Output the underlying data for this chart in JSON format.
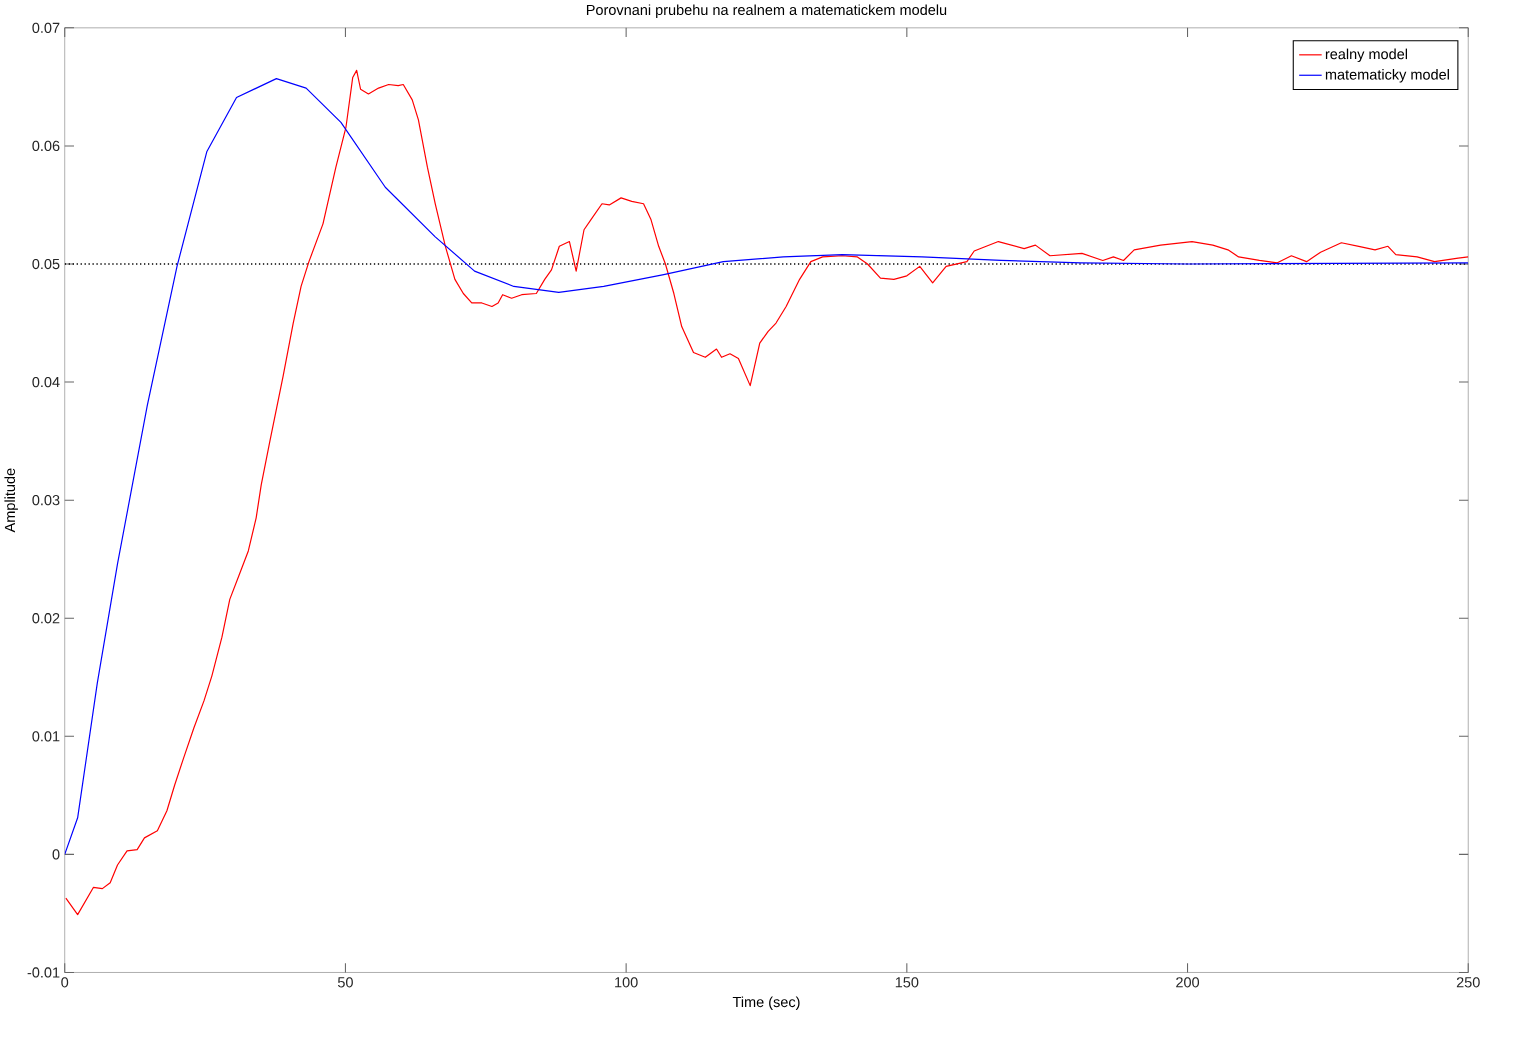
{
  "chart_data": {
    "type": "line",
    "title": "Porovnani prubehu na realnem a matematickem modelu",
    "xlabel": "Time (sec)",
    "ylabel": "Amplitude",
    "xlim": [
      0,
      250
    ],
    "ylim": [
      -0.01,
      0.07
    ],
    "xticks": [
      0,
      50,
      100,
      150,
      200,
      250
    ],
    "yticks": [
      -0.01,
      0,
      0.01,
      0.02,
      0.03,
      0.04,
      0.05,
      0.06,
      0.07
    ],
    "legend": "top right",
    "ref_lines": [
      {
        "axis": "y",
        "value": 0.05,
        "color": "#000000",
        "line_style": "dotted"
      }
    ],
    "series": [
      {
        "name": "realny model",
        "color": "#ff0000",
        "x": [
          0.2,
          2.3,
          5.1,
          6.7,
          8.1,
          9.4,
          11.1,
          12.9,
          14.2,
          16.5,
          18.2,
          19.6,
          21.2,
          23,
          24.8,
          26.2,
          28,
          29.4,
          31.1,
          32.7,
          34.1,
          35,
          36.5,
          38.9,
          40.7,
          42.1,
          43.5,
          46,
          48.3,
          50.1,
          51.3,
          52,
          52.7,
          54.1,
          55.9,
          57.7,
          59.4,
          60.3,
          61.9,
          63,
          64.6,
          66,
          67.8,
          69.5,
          71,
          72.5,
          74.3,
          76.1,
          77.2,
          78,
          79.6,
          81.4,
          84,
          85.5,
          86.7,
          88.1,
          89.9,
          91.1,
          92.5,
          93.8,
          95.7,
          97,
          99.1,
          101,
          103.1,
          104.4,
          105.8,
          107,
          108.5,
          109.9,
          112,
          114.1,
          116.1,
          117,
          118.5,
          120,
          122.1,
          123.8,
          125.3,
          126.7,
          128.5,
          130.9,
          132.9,
          135,
          138.5,
          141.2,
          143,
          145.3,
          147.7,
          150,
          152.3,
          154.6,
          157,
          160.7,
          162,
          166.3,
          170.9,
          172.9,
          175.5,
          181.2,
          184.9,
          186.8,
          188.6,
          190.5,
          195.2,
          200.8,
          204.5,
          207.2,
          209.1,
          212.8,
          216,
          218.5,
          221.2,
          223.7,
          227.4,
          230.5,
          233.4,
          235.7,
          237.1,
          240.9,
          244,
          248.2,
          250
        ],
        "values": [
          -0.0037,
          -0.0051,
          -0.0028,
          -0.0029,
          -0.0024,
          -0.0009,
          0.0003,
          0.0004,
          0.0014,
          0.002,
          0.0037,
          0.0059,
          0.0082,
          0.0107,
          0.013,
          0.0151,
          0.0184,
          0.0216,
          0.0237,
          0.0257,
          0.0285,
          0.0313,
          0.0349,
          0.0405,
          0.045,
          0.0481,
          0.0502,
          0.0534,
          0.0582,
          0.0616,
          0.0658,
          0.0664,
          0.0648,
          0.0644,
          0.0649,
          0.0652,
          0.0651,
          0.0652,
          0.0639,
          0.0622,
          0.0582,
          0.0551,
          0.0515,
          0.0487,
          0.0475,
          0.0467,
          0.0467,
          0.0464,
          0.0467,
          0.0474,
          0.0471,
          0.0474,
          0.0475,
          0.0487,
          0.0495,
          0.0515,
          0.0519,
          0.0494,
          0.0529,
          0.0538,
          0.0551,
          0.055,
          0.0556,
          0.0553,
          0.0551,
          0.0538,
          0.0515,
          0.05,
          0.0475,
          0.0447,
          0.0425,
          0.0421,
          0.0428,
          0.0421,
          0.0424,
          0.042,
          0.0397,
          0.0433,
          0.0443,
          0.045,
          0.0464,
          0.0487,
          0.0502,
          0.0506,
          0.0507,
          0.0506,
          0.05,
          0.0488,
          0.0487,
          0.049,
          0.0498,
          0.0484,
          0.0498,
          0.0502,
          0.0511,
          0.0519,
          0.0513,
          0.0516,
          0.0507,
          0.0509,
          0.0503,
          0.0506,
          0.0503,
          0.0512,
          0.0516,
          0.0519,
          0.0516,
          0.0512,
          0.0506,
          0.0503,
          0.0501,
          0.0507,
          0.0502,
          0.051,
          0.0518,
          0.0515,
          0.0512,
          0.0515,
          0.0508,
          0.0506,
          0.0502,
          0.0505,
          0.0506
        ]
      },
      {
        "name": "matematicky model",
        "color": "#0000ff",
        "x": [
          0,
          2.3,
          5.8,
          9.4,
          14.7,
          20,
          25.3,
          30.6,
          37.7,
          43,
          49.2,
          57.1,
          66,
          73,
          80,
          88,
          96,
          106.7,
          117.3,
          128,
          138.5,
          152.7,
          166.8,
          181,
          200,
          250
        ],
        "values": [
          0,
          0.0031,
          0.0145,
          0.0246,
          0.038,
          0.0498,
          0.0595,
          0.0641,
          0.0657,
          0.0649,
          0.062,
          0.0565,
          0.0523,
          0.0494,
          0.0481,
          0.0476,
          0.0481,
          0.0491,
          0.0502,
          0.0506,
          0.0508,
          0.0506,
          0.0503,
          0.0501,
          0.05,
          0.0501
        ]
      }
    ]
  }
}
